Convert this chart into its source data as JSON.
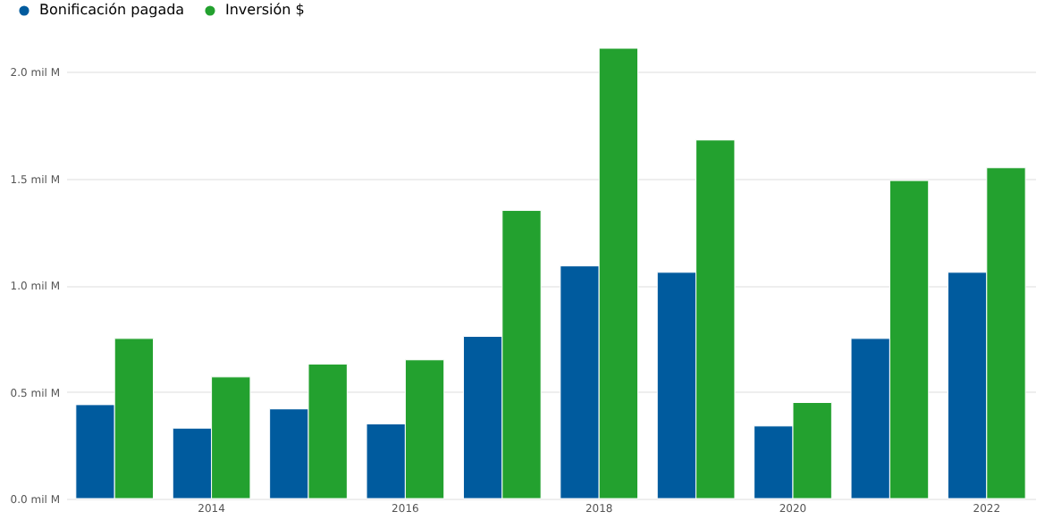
{
  "chart_data": {
    "type": "bar",
    "categories": [
      null,
      "2014",
      null,
      "2016",
      null,
      "2018",
      null,
      "2020",
      null,
      "2022"
    ],
    "series": [
      {
        "name": "Bonificación pagada",
        "color": "#005b9e",
        "values": [
          0.44,
          0.33,
          0.42,
          0.35,
          0.76,
          1.09,
          1.06,
          0.34,
          0.75,
          1.06
        ]
      },
      {
        "name": "Inversión $",
        "color": "#23a12f",
        "values": [
          0.75,
          0.57,
          0.63,
          0.65,
          1.35,
          2.11,
          1.68,
          0.45,
          1.49,
          1.55
        ]
      }
    ],
    "yticks": [
      {
        "value": 0,
        "label": "0.0 mil M"
      },
      {
        "value": 0.5,
        "label": "0.5 mil M"
      },
      {
        "value": 1,
        "label": "1.0 mil M"
      },
      {
        "value": 1.5,
        "label": "1.5 mil M"
      },
      {
        "value": 2,
        "label": "2.0 mil M"
      }
    ],
    "ylim": [
      0,
      2.11
    ],
    "grid": "y",
    "legend": "top left"
  }
}
